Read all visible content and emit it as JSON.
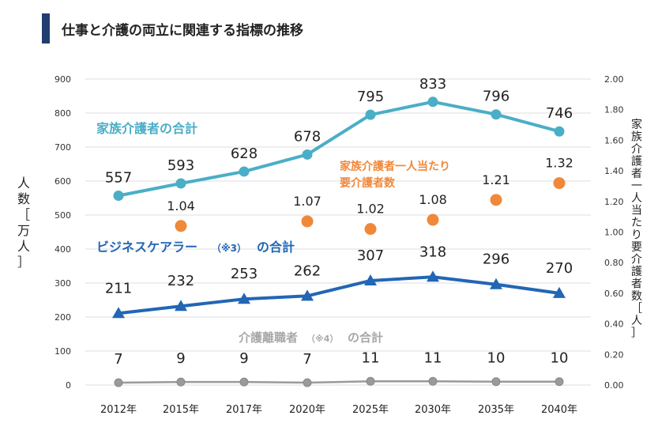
{
  "header": {
    "title": "仕事と介護の両立に関連する指標の推移"
  },
  "colors": {
    "family_caregivers": "#4aaec6",
    "business_carers": "#2266b5",
    "care_leavers": "#9a9a9a",
    "needs_per_caregiver": "#f0883a",
    "grid": "#dcdcdc",
    "axis_text": "#333333",
    "title_bar": "#1f3d6e"
  },
  "chart_data": {
    "type": "line",
    "title": "仕事と介護の両立に関連する指標の推移",
    "categories": [
      "2012年",
      "2015年",
      "2017年",
      "2020年",
      "2025年",
      "2030年",
      "2035年",
      "2040年"
    ],
    "ylabel_left": "人数［万人］",
    "ylabel_right": "家族介護者一人当たり要介護者数［人］",
    "ylim_left": [
      0,
      900
    ],
    "yticks_left": [
      "0",
      "100",
      "200",
      "300",
      "400",
      "500",
      "600",
      "700",
      "800",
      "900"
    ],
    "ylim_right": [
      0,
      2
    ],
    "yticks_right": [
      "0.00",
      "0.20",
      "0.40",
      "0.60",
      "0.80",
      "1.00",
      "1.20",
      "1.40",
      "1.60",
      "1.80",
      "2.00"
    ],
    "grid": true,
    "series": [
      {
        "name": "家族介護者の合計",
        "axis": "left",
        "marker": "circle",
        "values": [
          557,
          593,
          628,
          678,
          795,
          833,
          796,
          746
        ],
        "labels": [
          "557",
          "593",
          "628",
          "678",
          "795",
          "833",
          "796",
          "746"
        ]
      },
      {
        "name": "ビジネスケアラー（※3）の合計",
        "axis": "left",
        "marker": "triangle",
        "values": [
          211,
          232,
          253,
          262,
          307,
          318,
          296,
          270
        ],
        "labels": [
          "211",
          "232",
          "253",
          "262",
          "307",
          "318",
          "296",
          "270"
        ]
      },
      {
        "name": "介護離職者（※4）の合計",
        "axis": "left",
        "marker": "circle",
        "values": [
          7,
          9,
          9,
          7,
          11,
          11,
          10,
          10
        ],
        "labels": [
          "7",
          "9",
          "9",
          "7",
          "11",
          "11",
          "10",
          "10"
        ]
      },
      {
        "name": "家族介護者一人当たり要介護者数",
        "axis": "right",
        "marker": "circle",
        "line": false,
        "values": [
          null,
          1.04,
          null,
          1.07,
          1.02,
          1.08,
          1.21,
          1.32
        ],
        "labels": [
          null,
          "1.04",
          null,
          "1.07",
          "1.02",
          "1.08",
          "1.21",
          "1.32"
        ]
      }
    ],
    "legend_labels": {
      "family": "家族介護者の合計",
      "business": "ビジネスケアラー",
      "business_note": "（※3）",
      "business_suffix": "の合計",
      "leavers": "介護離職者",
      "leavers_note": "（※4）",
      "leavers_suffix": "の合計",
      "ratio_line1": "家族介護者一人当たり",
      "ratio_line2": "要介護者数"
    }
  }
}
